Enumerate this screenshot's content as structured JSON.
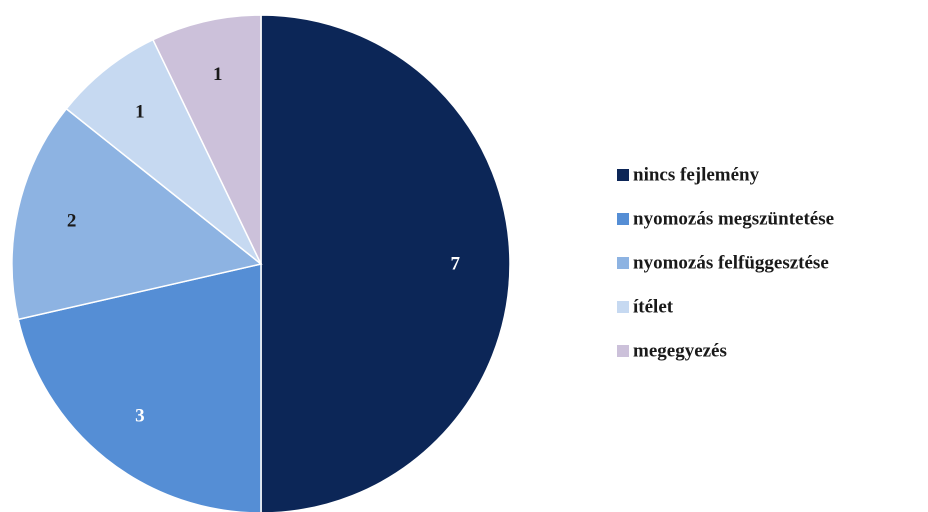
{
  "chart_data": {
    "type": "pie",
    "title": "",
    "start_angle_deg": 0,
    "direction": "clockwise",
    "legend_position": "right",
    "slices": [
      {
        "name": "nincs fejlemény",
        "value": 7,
        "color": "#0c2657",
        "label_color": "#ffffff"
      },
      {
        "name": "nyomozás megszüntetése",
        "value": 3,
        "color": "#558ed5",
        "label_color": "#ffffff"
      },
      {
        "name": "nyomozás felfüggesztése",
        "value": 2,
        "color": "#8db3e2",
        "label_color": "#1a1a1a"
      },
      {
        "name": "ítélet",
        "value": 1,
        "color": "#c6d9f1",
        "label_color": "#1a1a1a"
      },
      {
        "name": "megegyezés",
        "value": 1,
        "color": "#ccc1da",
        "label_color": "#1a1a1a"
      }
    ]
  }
}
